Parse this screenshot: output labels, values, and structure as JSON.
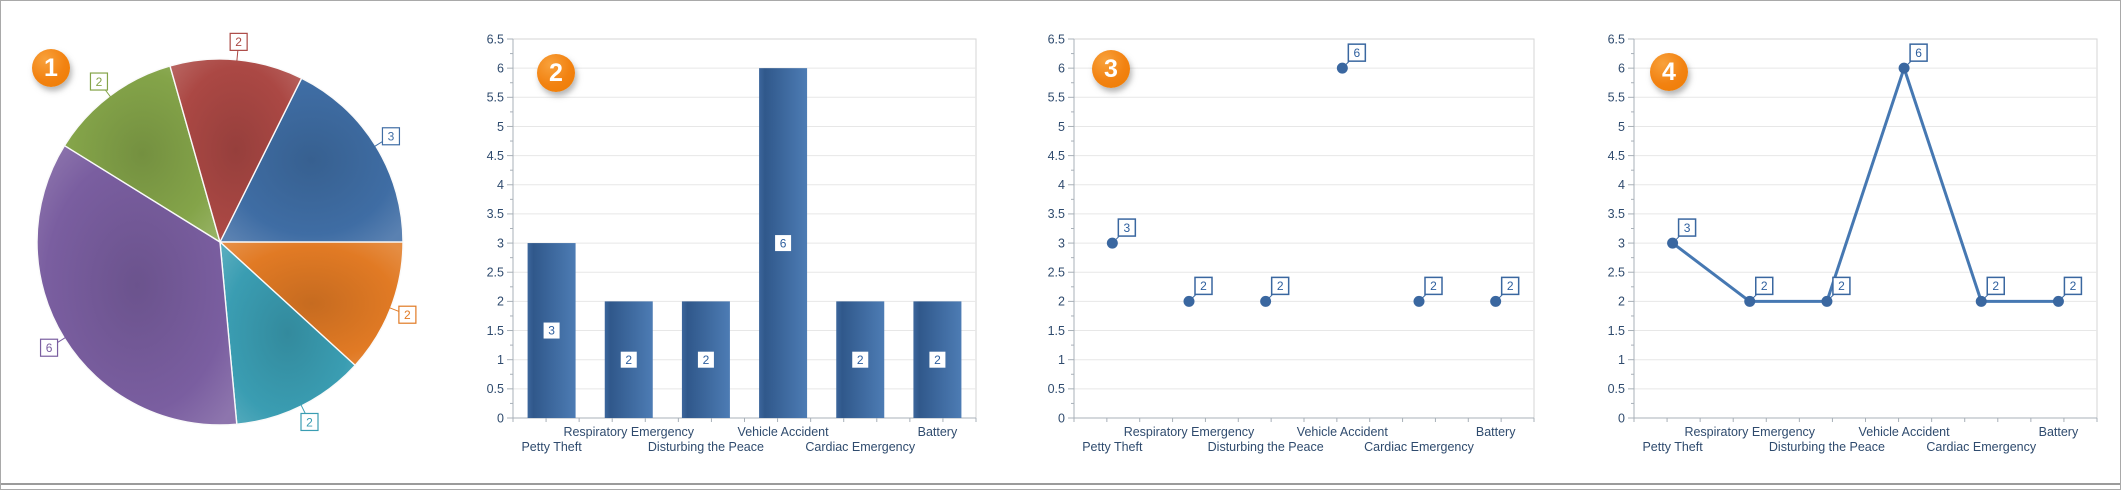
{
  "frame": {
    "border_color": "#a9a9a9",
    "bottom_rule_color": "#9b9b9b",
    "background": "#ffffff"
  },
  "badge_style": {
    "background": "#f28211",
    "text_color": "#ffffff"
  },
  "style": {
    "axis_text_color": "#2f4b6e",
    "grid_line_color": "#e7e7e7",
    "plot_border_color": "#d5d5d5",
    "axis_line_color": "#a8b0b8",
    "value_label_text_color": "#2e5f9e",
    "series_blue": "#3a67a0",
    "line_stroke": "#4678b2",
    "bar_gradient": [
      "#3c669c",
      "#30588b",
      "#4d7cb4"
    ]
  },
  "chart_data": [
    {
      "id": "pie-chart",
      "type": "pie",
      "badge": "1",
      "categories": [
        "Petty Theft",
        "Respiratory Emergency",
        "Disturbing the Peace",
        "Vehicle Accident",
        "Cardiac Emergency",
        "Battery"
      ],
      "values": [
        3,
        2,
        2,
        6,
        2,
        2
      ],
      "data_labels": [
        "3",
        "2",
        "2",
        "6",
        "2",
        "2"
      ],
      "slice_colors": [
        "#3f6da4",
        "#e17a24",
        "#3a9db2",
        "#7a5ea0",
        "#84a449",
        "#ab4844"
      ],
      "first_slice_start_deg_clockwise_from_12": 26.5,
      "sweep": "clockwise",
      "legend": "none"
    },
    {
      "id": "bar-chart",
      "type": "bar",
      "badge": "2",
      "categories": [
        "Petty Theft",
        "Respiratory Emergency",
        "Disturbing the Peace",
        "Vehicle Accident",
        "Cardiac Emergency",
        "Battery"
      ],
      "values": [
        3,
        2,
        2,
        6,
        2,
        2
      ],
      "data_labels": [
        "3",
        "2",
        "2",
        "6",
        "2",
        "2"
      ],
      "bar_color": "#3a67a0",
      "xlabel": "",
      "ylabel": "",
      "ylim": [
        0,
        6.5
      ],
      "y_tick_step": 0.5,
      "y_tick_labels": [
        "0",
        "0.5",
        "1",
        "1.5",
        "2",
        "2.5",
        "3",
        "3.5",
        "4",
        "4.5",
        "5",
        "5.5",
        "6",
        "6.5"
      ],
      "grid": "horizontal",
      "legend": "none"
    },
    {
      "id": "scatter-chart",
      "type": "scatter",
      "badge": "3",
      "categories": [
        "Petty Theft",
        "Respiratory Emergency",
        "Disturbing the Peace",
        "Vehicle Accident",
        "Cardiac Emergency",
        "Battery"
      ],
      "values": [
        3,
        2,
        2,
        6,
        2,
        2
      ],
      "data_labels": [
        "3",
        "2",
        "2",
        "6",
        "2",
        "2"
      ],
      "point_color": "#3a67a0",
      "xlabel": "",
      "ylabel": "",
      "ylim": [
        0,
        6.5
      ],
      "y_tick_step": 0.5,
      "y_tick_labels": [
        "0",
        "0.5",
        "1",
        "1.5",
        "2",
        "2.5",
        "3",
        "3.5",
        "4",
        "4.5",
        "5",
        "5.5",
        "6",
        "6.5"
      ],
      "grid": "horizontal",
      "legend": "none"
    },
    {
      "id": "line-chart",
      "type": "line",
      "badge": "4",
      "categories": [
        "Petty Theft",
        "Respiratory Emergency",
        "Disturbing the Peace",
        "Vehicle Accident",
        "Cardiac Emergency",
        "Battery"
      ],
      "values": [
        3,
        2,
        2,
        6,
        2,
        2
      ],
      "data_labels": [
        "3",
        "2",
        "2",
        "6",
        "2",
        "2"
      ],
      "line_color": "#4678b2",
      "point_color": "#3a67a0",
      "xlabel": "",
      "ylabel": "",
      "ylim": [
        0,
        6.5
      ],
      "y_tick_step": 0.5,
      "y_tick_labels": [
        "0",
        "0.5",
        "1",
        "1.5",
        "2",
        "2.5",
        "3",
        "3.5",
        "4",
        "4.5",
        "5",
        "5.5",
        "6",
        "6.5"
      ],
      "grid": "horizontal",
      "legend": "none"
    }
  ]
}
